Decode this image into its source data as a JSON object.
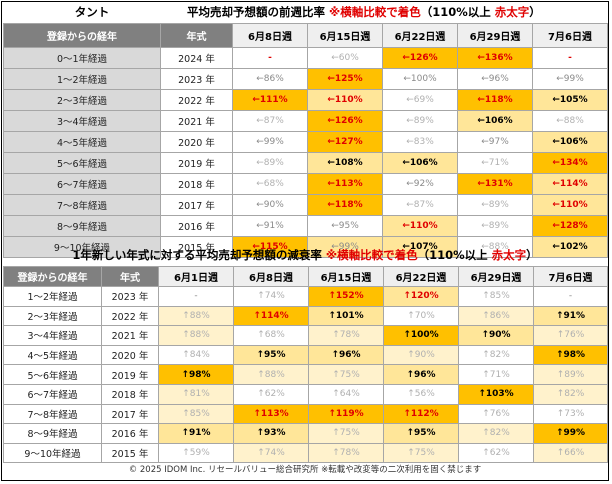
{
  "chart_data": [
    {
      "type": "table",
      "header_label": "タント",
      "title_main": "平均売却予想額の前週比率",
      "title_note_red": "※横軸比較で着色",
      "title_note_paren_start": "（110%以上 ",
      "title_note_red2": "赤太字",
      "title_note_paren_end": "）",
      "row_header": "登録からの経年",
      "year_header": "年式",
      "columns": [
        "6月8日週",
        "6月15日週",
        "6月22日週",
        "6月29日週",
        "7月6日週"
      ],
      "rows": [
        {
          "label": "0～1年経過",
          "year": "2024 年",
          "cells": [
            {
              "t": "-",
              "c": "#ffffff",
              "s": "red"
            },
            {
              "t": "←60%",
              "c": "#ffffff",
              "s": "faint"
            },
            {
              "t": "←126%",
              "c": "#ffc000",
              "s": "red"
            },
            {
              "t": "←136%",
              "c": "#ffc000",
              "s": "red"
            },
            {
              "t": "-",
              "c": "#ffffff",
              "s": "red"
            }
          ]
        },
        {
          "label": "1～2年経過",
          "year": "2023 年",
          "cells": [
            {
              "t": "←86%",
              "c": "#ffffff",
              "s": "grey"
            },
            {
              "t": "←125%",
              "c": "#ffc000",
              "s": "red"
            },
            {
              "t": "←100%",
              "c": "#ffffff",
              "s": "grey"
            },
            {
              "t": "←96%",
              "c": "#ffffff",
              "s": "grey"
            },
            {
              "t": "←99%",
              "c": "#ffffff",
              "s": "grey"
            }
          ]
        },
        {
          "label": "2～3年経過",
          "year": "2022 年",
          "cells": [
            {
              "t": "←111%",
              "c": "#ffc000",
              "s": "red"
            },
            {
              "t": "←110%",
              "c": "#ffe699",
              "s": "red"
            },
            {
              "t": "←69%",
              "c": "#ffffff",
              "s": "faint"
            },
            {
              "t": "←118%",
              "c": "#ffc000",
              "s": "red"
            },
            {
              "t": "←105%",
              "c": "#ffe699",
              "s": "bold"
            }
          ]
        },
        {
          "label": "3～4年経過",
          "year": "2021 年",
          "cells": [
            {
              "t": "←87%",
              "c": "#ffffff",
              "s": "faint"
            },
            {
              "t": "←126%",
              "c": "#ffc000",
              "s": "red"
            },
            {
              "t": "←89%",
              "c": "#ffffff",
              "s": "faint"
            },
            {
              "t": "←106%",
              "c": "#ffe699",
              "s": "bold"
            },
            {
              "t": "←88%",
              "c": "#ffffff",
              "s": "faint"
            }
          ]
        },
        {
          "label": "4～5年経過",
          "year": "2020 年",
          "cells": [
            {
              "t": "←99%",
              "c": "#ffffff",
              "s": "grey"
            },
            {
              "t": "←127%",
              "c": "#ffc000",
              "s": "red"
            },
            {
              "t": "←83%",
              "c": "#ffffff",
              "s": "faint"
            },
            {
              "t": "←97%",
              "c": "#ffffff",
              "s": "grey"
            },
            {
              "t": "←106%",
              "c": "#ffe699",
              "s": "bold"
            }
          ]
        },
        {
          "label": "5～6年経過",
          "year": "2019 年",
          "cells": [
            {
              "t": "←89%",
              "c": "#ffffff",
              "s": "faint"
            },
            {
              "t": "←108%",
              "c": "#ffe699",
              "s": "bold"
            },
            {
              "t": "←106%",
              "c": "#ffe699",
              "s": "bold"
            },
            {
              "t": "←71%",
              "c": "#ffffff",
              "s": "faint"
            },
            {
              "t": "←134%",
              "c": "#ffc000",
              "s": "red"
            }
          ]
        },
        {
          "label": "6～7年経過",
          "year": "2018 年",
          "cells": [
            {
              "t": "←68%",
              "c": "#ffffff",
              "s": "faint"
            },
            {
              "t": "←113%",
              "c": "#ffc000",
              "s": "red"
            },
            {
              "t": "←92%",
              "c": "#ffffff",
              "s": "grey"
            },
            {
              "t": "←131%",
              "c": "#ffc000",
              "s": "red"
            },
            {
              "t": "←114%",
              "c": "#ffe699",
              "s": "red"
            }
          ]
        },
        {
          "label": "7～8年経過",
          "year": "2017 年",
          "cells": [
            {
              "t": "←90%",
              "c": "#ffffff",
              "s": "grey"
            },
            {
              "t": "←118%",
              "c": "#ffc000",
              "s": "red"
            },
            {
              "t": "←87%",
              "c": "#ffffff",
              "s": "faint"
            },
            {
              "t": "←89%",
              "c": "#ffffff",
              "s": "faint"
            },
            {
              "t": "←110%",
              "c": "#ffe699",
              "s": "red"
            }
          ]
        },
        {
          "label": "8～9年経過",
          "year": "2016 年",
          "cells": [
            {
              "t": "←91%",
              "c": "#ffffff",
              "s": "grey"
            },
            {
              "t": "←95%",
              "c": "#ffffff",
              "s": "grey"
            },
            {
              "t": "←110%",
              "c": "#ffe699",
              "s": "red"
            },
            {
              "t": "←89%",
              "c": "#ffffff",
              "s": "faint"
            },
            {
              "t": "←128%",
              "c": "#ffc000",
              "s": "red"
            }
          ]
        },
        {
          "label": "9～10年経過",
          "year": "2015 年",
          "cells": [
            {
              "t": "←115%",
              "c": "#ffc000",
              "s": "red"
            },
            {
              "t": "←99%",
              "c": "#ffe699",
              "s": "grey"
            },
            {
              "t": "←107%",
              "c": "#ffe699",
              "s": "bold"
            },
            {
              "t": "←88%",
              "c": "#ffffff",
              "s": "faint"
            },
            {
              "t": "←102%",
              "c": "#ffe699",
              "s": "bold"
            }
          ]
        }
      ]
    },
    {
      "type": "table",
      "title_main": "1年新しい年式に対する平均売却予想額の減衰率",
      "title_note_red": "※横軸比較で着色",
      "title_note_paren_start": "（110%以上 ",
      "title_note_red2": "赤太字",
      "title_note_paren_end": "）",
      "row_header": "登録からの経年",
      "year_header": "年式",
      "columns": [
        "6月1日週",
        "6月8日週",
        "6月15日週",
        "6月22日週",
        "6月29日週",
        "7月6日週"
      ],
      "rows": [
        {
          "label": "1～2年経過",
          "year": "2023 年",
          "cells": [
            {
              "t": "-",
              "c": "#ffffff",
              "s": "grey"
            },
            {
              "t": "↑74%",
              "c": "#ffffff",
              "s": "faint"
            },
            {
              "t": "↑152%",
              "c": "#ffc000",
              "s": "red"
            },
            {
              "t": "↑120%",
              "c": "#ffe699",
              "s": "red"
            },
            {
              "t": "↑85%",
              "c": "#ffffff",
              "s": "faint"
            },
            {
              "t": "-",
              "c": "#ffffff",
              "s": "grey"
            }
          ]
        },
        {
          "label": "2～3年経過",
          "year": "2022 年",
          "cells": [
            {
              "t": "↑88%",
              "c": "#fff2cc",
              "s": "faint"
            },
            {
              "t": "↑114%",
              "c": "#ffc000",
              "s": "red"
            },
            {
              "t": "↑101%",
              "c": "#ffe699",
              "s": "bold"
            },
            {
              "t": "↑70%",
              "c": "#ffffff",
              "s": "faint"
            },
            {
              "t": "↑86%",
              "c": "#fff2cc",
              "s": "faint"
            },
            {
              "t": "↑91%",
              "c": "#ffe699",
              "s": "bold"
            }
          ]
        },
        {
          "label": "3～4年経過",
          "year": "2021 年",
          "cells": [
            {
              "t": "↑88%",
              "c": "#fff2cc",
              "s": "faint"
            },
            {
              "t": "↑68%",
              "c": "#ffffff",
              "s": "faint"
            },
            {
              "t": "↑78%",
              "c": "#fff2cc",
              "s": "faint"
            },
            {
              "t": "↑100%",
              "c": "#ffc000",
              "s": "bold"
            },
            {
              "t": "↑90%",
              "c": "#ffe699",
              "s": "bold"
            },
            {
              "t": "↑76%",
              "c": "#fff2cc",
              "s": "faint"
            }
          ]
        },
        {
          "label": "4～5年経過",
          "year": "2020 年",
          "cells": [
            {
              "t": "↑84%",
              "c": "#ffffff",
              "s": "faint"
            },
            {
              "t": "↑95%",
              "c": "#ffe699",
              "s": "bold"
            },
            {
              "t": "↑96%",
              "c": "#ffe699",
              "s": "bold"
            },
            {
              "t": "↑90%",
              "c": "#fff2cc",
              "s": "faint"
            },
            {
              "t": "↑82%",
              "c": "#ffffff",
              "s": "faint"
            },
            {
              "t": "↑98%",
              "c": "#ffc000",
              "s": "bold"
            }
          ]
        },
        {
          "label": "5～6年経過",
          "year": "2019 年",
          "cells": [
            {
              "t": "↑98%",
              "c": "#ffc000",
              "s": "bold"
            },
            {
              "t": "↑88%",
              "c": "#fff2cc",
              "s": "faint"
            },
            {
              "t": "↑75%",
              "c": "#fff2cc",
              "s": "faint"
            },
            {
              "t": "↑96%",
              "c": "#ffe699",
              "s": "bold"
            },
            {
              "t": "↑71%",
              "c": "#ffffff",
              "s": "faint"
            },
            {
              "t": "↑89%",
              "c": "#fff2cc",
              "s": "faint"
            }
          ]
        },
        {
          "label": "6～7年経過",
          "year": "2018 年",
          "cells": [
            {
              "t": "↑81%",
              "c": "#fff2cc",
              "s": "faint"
            },
            {
              "t": "↑62%",
              "c": "#ffffff",
              "s": "faint"
            },
            {
              "t": "↑64%",
              "c": "#ffffff",
              "s": "faint"
            },
            {
              "t": "↑56%",
              "c": "#ffffff",
              "s": "faint"
            },
            {
              "t": "↑103%",
              "c": "#ffc000",
              "s": "bold"
            },
            {
              "t": "↑82%",
              "c": "#fff2cc",
              "s": "faint"
            }
          ]
        },
        {
          "label": "7～8年経過",
          "year": "2017 年",
          "cells": [
            {
              "t": "↑85%",
              "c": "#fff2cc",
              "s": "faint"
            },
            {
              "t": "↑113%",
              "c": "#ffc000",
              "s": "red"
            },
            {
              "t": "↑119%",
              "c": "#ffc000",
              "s": "red"
            },
            {
              "t": "↑112%",
              "c": "#ffc000",
              "s": "red"
            },
            {
              "t": "↑76%",
              "c": "#ffffff",
              "s": "faint"
            },
            {
              "t": "↑73%",
              "c": "#ffffff",
              "s": "faint"
            }
          ]
        },
        {
          "label": "8～9年経過",
          "year": "2016 年",
          "cells": [
            {
              "t": "↑91%",
              "c": "#ffe699",
              "s": "bold"
            },
            {
              "t": "↑93%",
              "c": "#ffe699",
              "s": "bold"
            },
            {
              "t": "↑75%",
              "c": "#fff2cc",
              "s": "faint"
            },
            {
              "t": "↑95%",
              "c": "#ffe699",
              "s": "bold"
            },
            {
              "t": "↑82%",
              "c": "#fff2cc",
              "s": "faint"
            },
            {
              "t": "↑99%",
              "c": "#ffc000",
              "s": "bold"
            }
          ]
        },
        {
          "label": "9～10年経過",
          "year": "2015 年",
          "cells": [
            {
              "t": "↑59%",
              "c": "#ffffff",
              "s": "faint"
            },
            {
              "t": "↑74%",
              "c": "#fff2cc",
              "s": "faint"
            },
            {
              "t": "↑78%",
              "c": "#fff2cc",
              "s": "faint"
            },
            {
              "t": "↑75%",
              "c": "#fff2cc",
              "s": "faint"
            },
            {
              "t": "↑62%",
              "c": "#ffffff",
              "s": "faint"
            },
            {
              "t": "↑66%",
              "c": "#fff2cc",
              "s": "faint"
            }
          ]
        }
      ]
    }
  ],
  "footer": "© 2025 IDOM Inc. リセールバリュー総合研究所 ※転載や改変等の二次利用を固く禁じます",
  "colors": {
    "header_dark": "#808080",
    "row_label_bg": "#d9d9d9",
    "high": "#ffc000",
    "mid": "#ffe699",
    "low": "#fff2cc",
    "red_text": "#e00000"
  }
}
